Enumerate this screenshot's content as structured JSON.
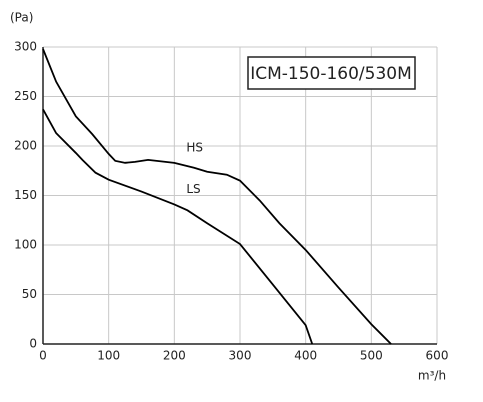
{
  "chart_data": {
    "type": "line",
    "title": "ICM-150-160/530M",
    "y_label": "(Pa)",
    "x_label": "m³/h",
    "xlim": [
      0,
      600
    ],
    "ylim": [
      0,
      300
    ],
    "xticks": [
      0,
      100,
      200,
      300,
      400,
      500,
      600
    ],
    "yticks": [
      0,
      50,
      100,
      150,
      200,
      250,
      300
    ],
    "grid": true,
    "series": [
      {
        "name": "HS",
        "color": "#000000",
        "x": [
          0,
          20,
          50,
          75,
          100,
          110,
          125,
          140,
          160,
          200,
          230,
          250,
          280,
          300,
          330,
          360,
          400,
          450,
          500,
          530
        ],
        "values": [
          298,
          265,
          230,
          212,
          192,
          185,
          183,
          184,
          186,
          183,
          178,
          174,
          171,
          165,
          145,
          122,
          95,
          57,
          20,
          0
        ]
      },
      {
        "name": "LS",
        "color": "#000000",
        "x": [
          0,
          20,
          50,
          60,
          80,
          100,
          150,
          200,
          220,
          250,
          300,
          350,
          400,
          410
        ],
        "values": [
          237,
          213,
          193,
          186,
          173,
          166,
          154,
          141,
          135,
          122,
          101,
          60,
          19,
          0
        ]
      }
    ]
  }
}
